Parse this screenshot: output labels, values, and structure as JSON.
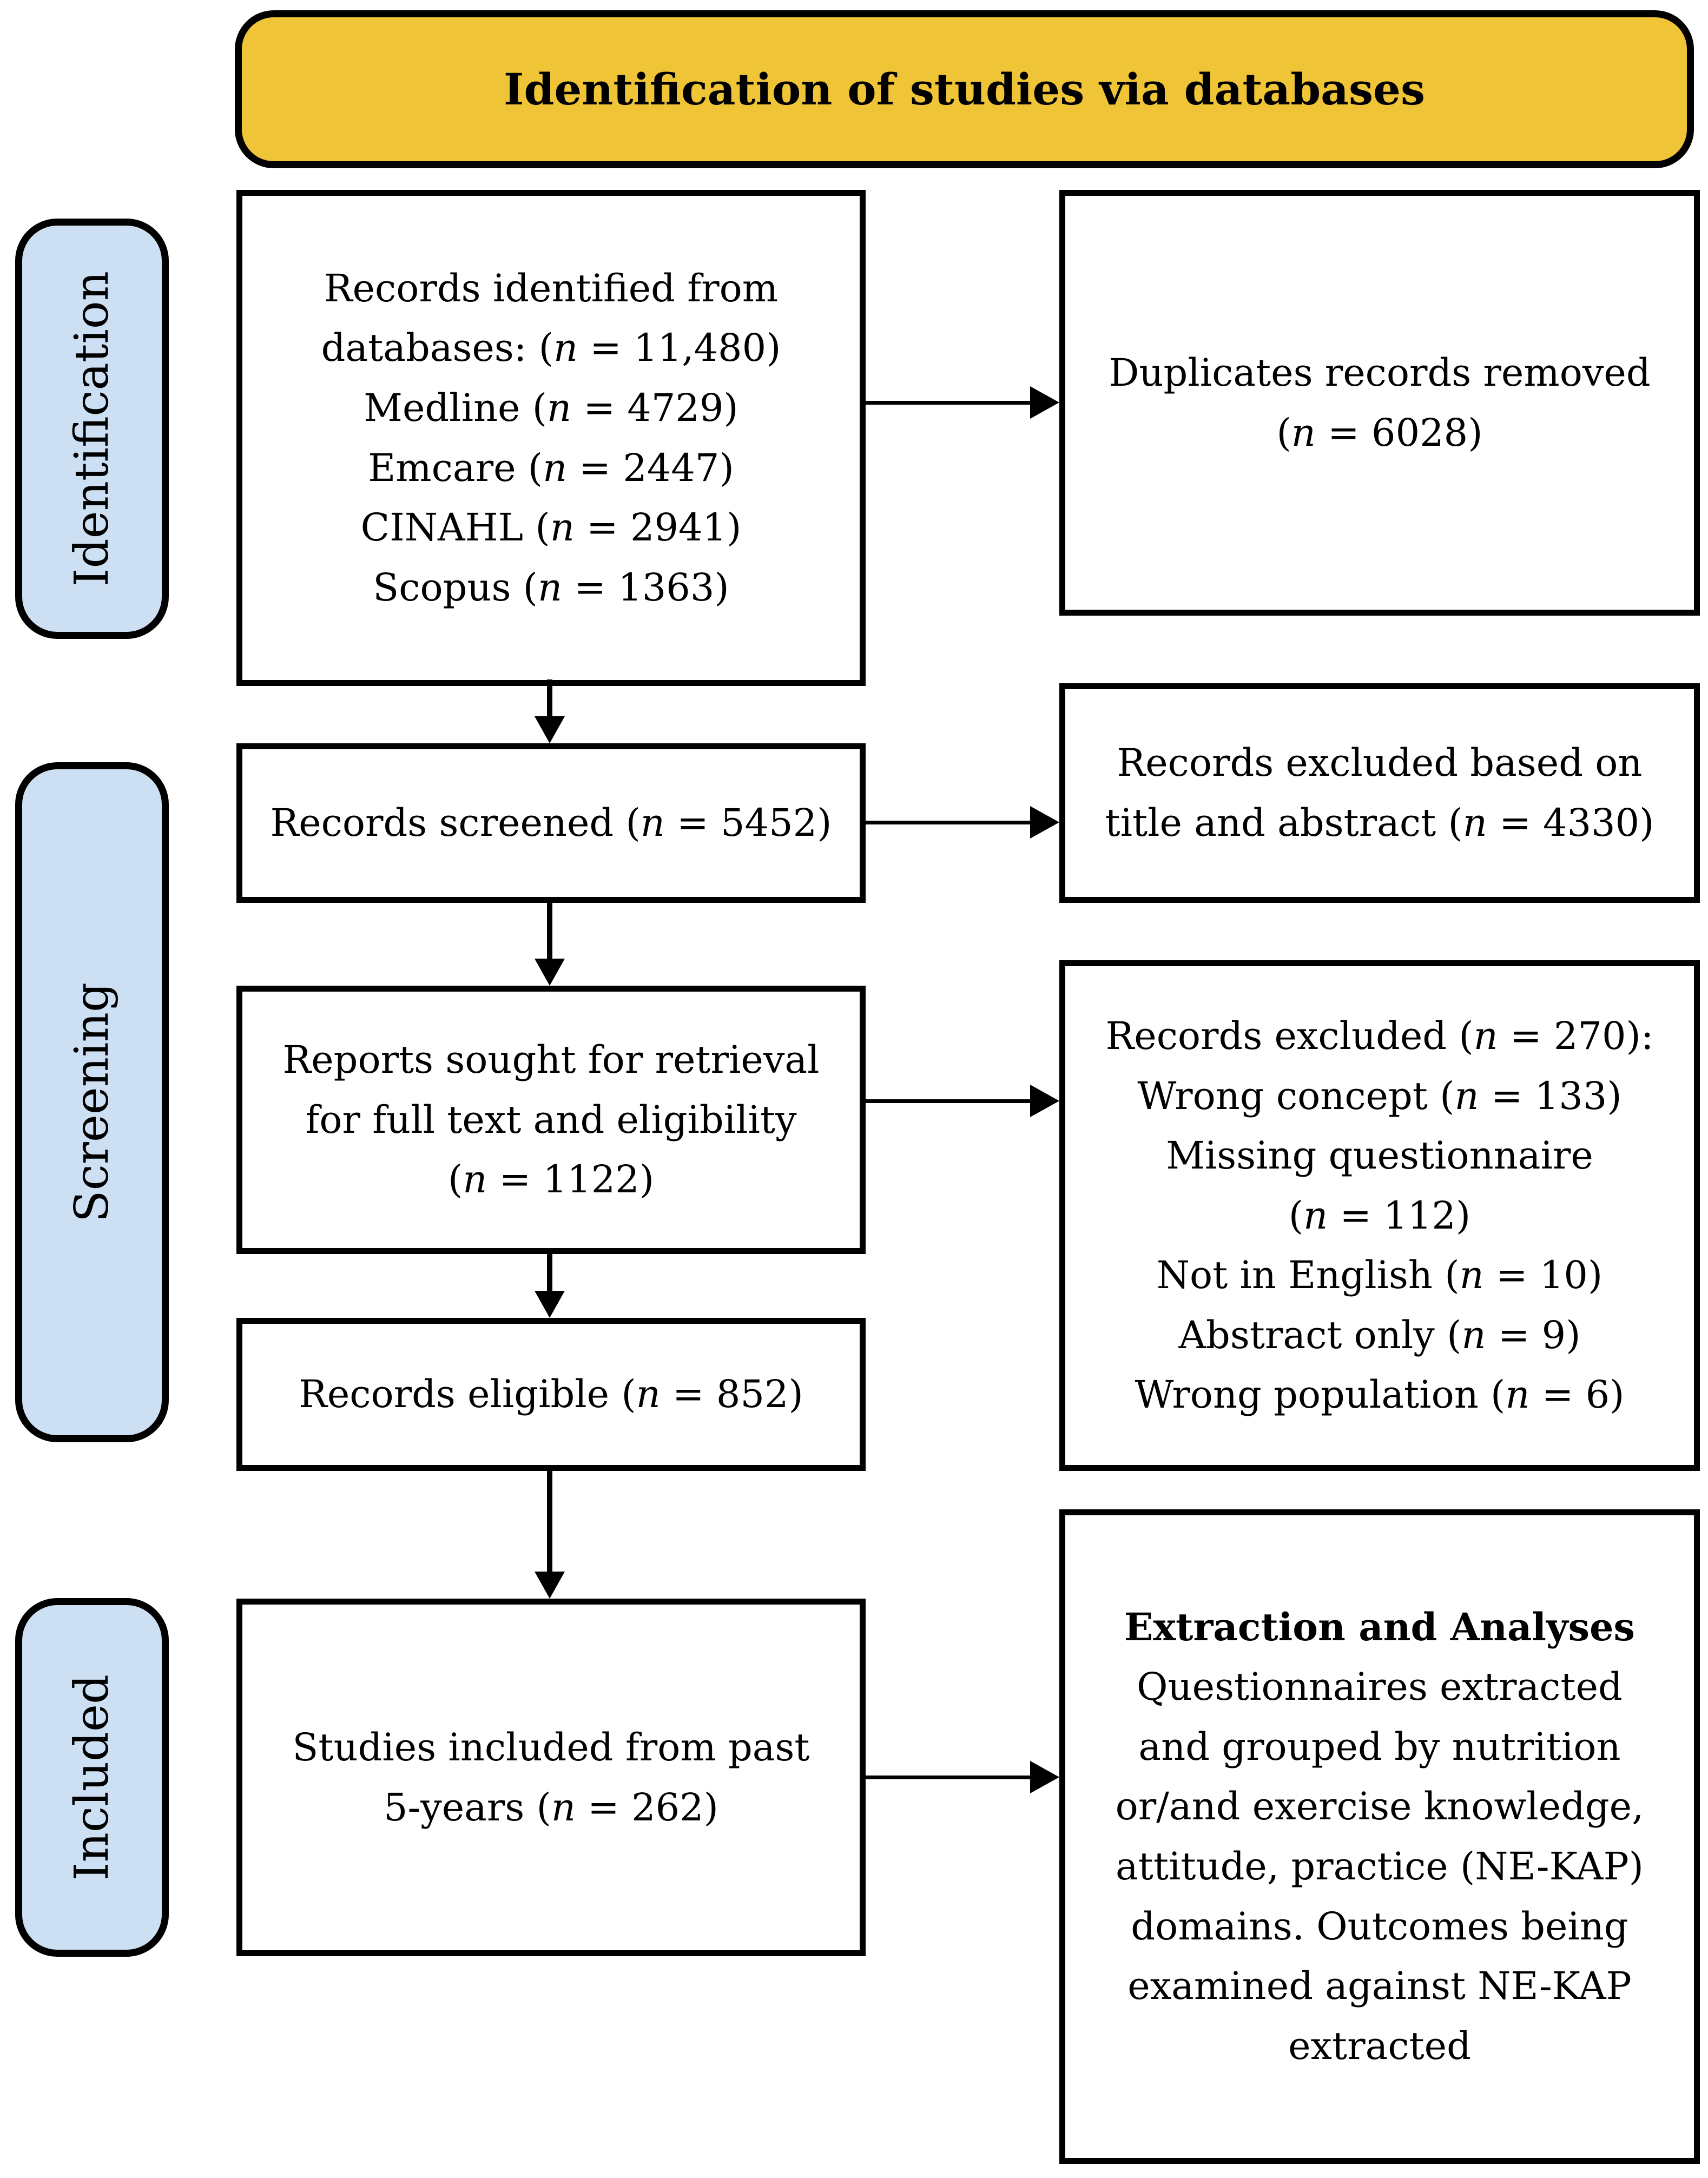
{
  "header": {
    "title": "Identification of studies via databases"
  },
  "colors": {
    "header_bg": "#EFC437",
    "stage_bg": "#CDDFF2",
    "box_border": "#000000"
  },
  "stages": {
    "identification": "Identification",
    "screening": "Screening",
    "included": "Included"
  },
  "boxes": {
    "identified": {
      "lines": [
        "Records identified from",
        "databases: (n = 11,480)",
        "Medline (n = 4729)",
        "Emcare (n = 2447)",
        "CINAHL (n = 2941)",
        "Scopus (n = 1363)"
      ]
    },
    "duplicates": {
      "lines": [
        "Duplicates records removed",
        "(n = 6028)"
      ]
    },
    "screened": {
      "lines": [
        "Records screened (n = 5452)"
      ]
    },
    "excluded_screening": {
      "lines": [
        "Records excluded based on",
        "title and abstract (n = 4330)"
      ]
    },
    "sought": {
      "lines": [
        "Reports sought for retrieval",
        "for full text and eligibility",
        "(n = 1122)"
      ]
    },
    "excluded_eligibility": {
      "lines": [
        "Records excluded (n = 270):",
        "Wrong concept (n = 133)",
        "Missing questionnaire",
        "(n = 112)",
        "Not in English (n = 10)",
        "Abstract only (n = 9)",
        "Wrong population (n = 6)"
      ]
    },
    "eligible": {
      "lines": [
        "Records eligible (n = 852)"
      ]
    },
    "included_studies": {
      "lines": [
        "Studies included from past",
        "5-years (n = 262)"
      ]
    },
    "extraction": {
      "title": "Extraction and Analyses",
      "lines": [
        "Questionnaires extracted",
        "and grouped by nutrition",
        "or/and exercise knowledge,",
        "attitude, practice (NE-KAP)",
        "domains. Outcomes being",
        "examined against NE-KAP",
        "extracted"
      ]
    }
  }
}
